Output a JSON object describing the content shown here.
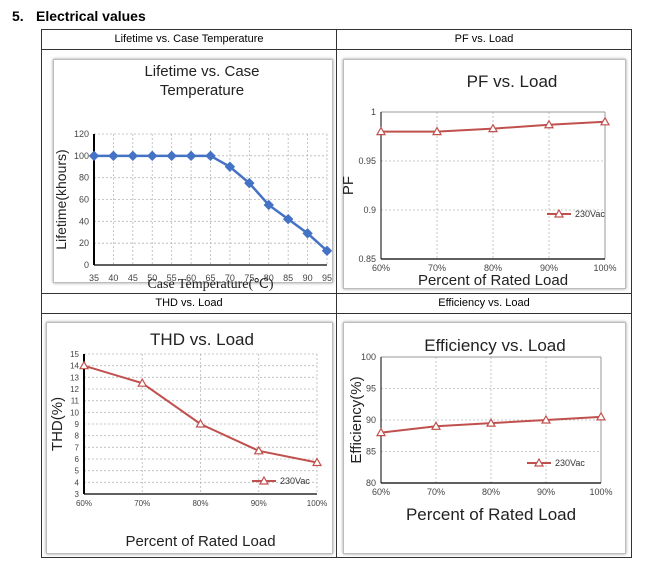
{
  "section": {
    "number": "5.",
    "title": "Electrical values"
  },
  "cells": [
    "Lifetime vs. Case Temperature",
    "PF vs. Load",
    "THD vs. Load",
    "Efficiency vs. Load"
  ],
  "chart_data": [
    {
      "type": "line",
      "title_lines": [
        "Lifetime vs. Case",
        "Temperature"
      ],
      "xlabel": "Case Temperature(℃)",
      "ylabel": "Lifetime(khours)",
      "x": [
        35,
        40,
        45,
        50,
        55,
        60,
        65,
        70,
        75,
        80,
        85,
        90,
        95
      ],
      "xticks": [
        "35",
        "40",
        "45",
        "50",
        "55",
        "60",
        "65",
        "70",
        "75",
        "80",
        "85",
        "90",
        "95"
      ],
      "series": [
        {
          "name": "Lifetime",
          "values": [
            100,
            100,
            100,
            100,
            100,
            100,
            100,
            90,
            75,
            55,
            42,
            29,
            13
          ]
        }
      ],
      "ylim": [
        0,
        120
      ],
      "yticks": [
        0,
        20,
        40,
        60,
        80,
        100,
        120
      ],
      "ytick_labels": [
        "0",
        "20",
        "40",
        "60",
        "80",
        "100",
        "120"
      ],
      "marker": "diamond",
      "color": "#4472c4",
      "legend": ""
    },
    {
      "type": "line",
      "title_lines": [
        "PF vs. Load"
      ],
      "xlabel": "Percent of Rated Load",
      "ylabel": "PF",
      "x": [
        60,
        70,
        80,
        90,
        100
      ],
      "xticks": [
        "60%",
        "70%",
        "80%",
        "90%",
        "100%"
      ],
      "series": [
        {
          "name": "230Vac",
          "values": [
            0.98,
            0.98,
            0.983,
            0.987,
            0.99
          ]
        }
      ],
      "ylim": [
        0.85,
        1
      ],
      "yticks": [
        0.85,
        0.9,
        0.95,
        1
      ],
      "ytick_labels": [
        "0.85",
        "0.9",
        "0.95",
        "1"
      ],
      "marker": "triangle",
      "color": "#c0504d",
      "legend": "right"
    },
    {
      "type": "line",
      "title_lines": [
        "THD vs. Load"
      ],
      "xlabel": "Percent of Rated Load",
      "ylabel": "THD(%)",
      "x": [
        60,
        70,
        80,
        90,
        100
      ],
      "xticks": [
        "60%",
        "70%",
        "80%",
        "90%",
        "100%"
      ],
      "series": [
        {
          "name": "230Vac",
          "values": [
            14,
            12.5,
            9,
            6.7,
            5.7
          ]
        }
      ],
      "ylim": [
        3,
        15
      ],
      "yticks": [
        3,
        4,
        5,
        6,
        7,
        8,
        9,
        10,
        11,
        12,
        13,
        14,
        15
      ],
      "ytick_labels": [
        "3",
        "4",
        "5",
        "6",
        "7",
        "8",
        "9",
        "10",
        "11",
        "12",
        "13",
        "14",
        "15"
      ],
      "marker": "triangle",
      "color": "#c0504d",
      "legend": "lower-right"
    },
    {
      "type": "line",
      "title_lines": [
        "Efficiency vs. Load"
      ],
      "xlabel": "Percent of Rated Load",
      "ylabel": "Efficiency(%)",
      "x": [
        60,
        70,
        80,
        90,
        100
      ],
      "xticks": [
        "60%",
        "70%",
        "80%",
        "90%",
        "100%"
      ],
      "series": [
        {
          "name": "230Vac",
          "values": [
            88,
            89,
            89.5,
            90,
            90.5
          ]
        }
      ],
      "ylim": [
        80,
        100
      ],
      "yticks": [
        80,
        85,
        90,
        95,
        100
      ],
      "ytick_labels": [
        "80",
        "85",
        "90",
        "95",
        "100"
      ],
      "marker": "triangle",
      "color": "#c0504d",
      "legend": "right"
    }
  ]
}
